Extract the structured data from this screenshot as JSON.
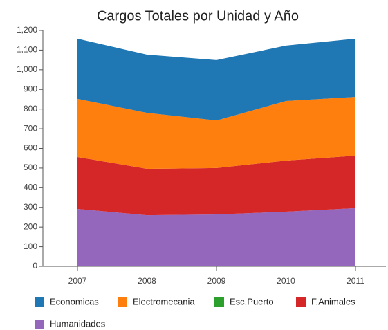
{
  "chart_data": {
    "type": "stacked-area",
    "title": "Cargos Totales por Unidad y Año",
    "categories": [
      "2007",
      "2008",
      "2009",
      "2010",
      "2011"
    ],
    "series": [
      {
        "name": "Economicas",
        "color": "#1f77b4",
        "values": [
          306,
          296,
          307,
          282,
          296
        ]
      },
      {
        "name": "Electromecania",
        "color": "#ff7f0e",
        "values": [
          296,
          285,
          242,
          303,
          299
        ]
      },
      {
        "name": "Esc.Puerto",
        "color": "#2ca02c",
        "values": [
          0,
          0,
          0,
          0,
          0
        ]
      },
      {
        "name": "F.Animales",
        "color": "#d62728",
        "values": [
          264,
          236,
          236,
          260,
          267
        ]
      },
      {
        "name": "Humanidades",
        "color": "#9467bd",
        "values": [
          292,
          260,
          264,
          278,
          296
        ]
      }
    ],
    "ylim": [
      0,
      1200
    ],
    "yticks": [
      0,
      100,
      200,
      300,
      400,
      500,
      600,
      700,
      800,
      900,
      {
        "value": 1000,
        "label": "1,000"
      },
      {
        "value": 1100,
        "label": "1,100"
      },
      {
        "value": 1200,
        "label": "1,200"
      }
    ]
  }
}
